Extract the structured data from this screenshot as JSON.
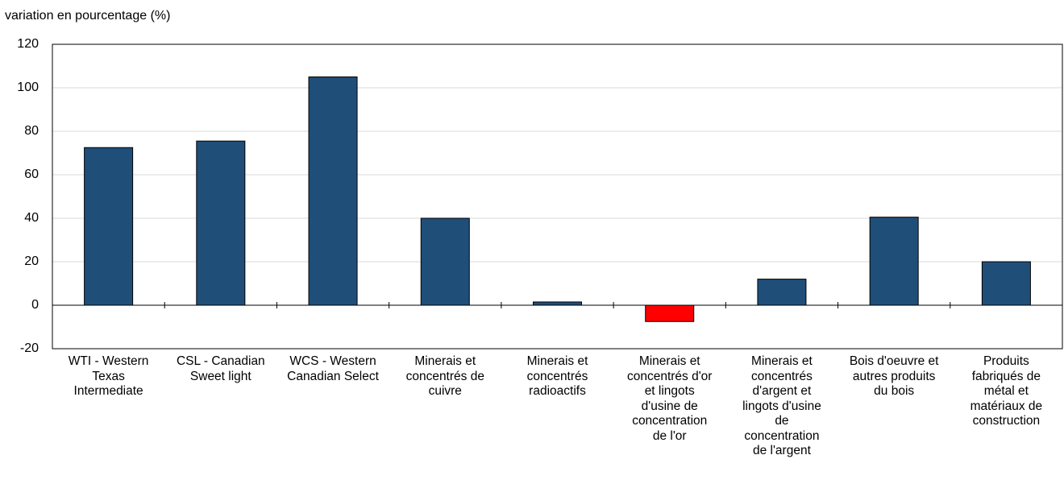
{
  "chart_data": {
    "type": "bar",
    "y_label": "variation en pourcentage (%)",
    "categories": [
      "WTI  - Western\nTexas\nIntermediate",
      "CSL - Canadian\nSweet light",
      "WCS - Western\nCanadian Select",
      "Minerais et\nconcentrés de\ncuivre",
      "Minerais et\nconcentrés\nradioactifs",
      "Minerais et\nconcentrés d'or\net lingots\nd'usine de\nconcentration\nde l'or",
      "Minerais et\nconcentrés\nd'argent et\nlingots d'usine\nde\nconcentration\nde l'argent",
      "Bois d'oeuvre et\nautres produits\ndu bois",
      "Produits\nfabriqués de\nmétal et\nmatériaux de\nconstruction"
    ],
    "values": [
      72.5,
      75.5,
      105,
      40,
      1.5,
      -7.5,
      12,
      40.5,
      20
    ],
    "colors": [
      "#1f4e79",
      "#1f4e79",
      "#1f4e79",
      "#1f4e79",
      "#1f4e79",
      "#ff0000",
      "#1f4e79",
      "#1f4e79",
      "#1f4e79"
    ],
    "ylim": [
      -20,
      120
    ],
    "yticks": [
      -20,
      0,
      20,
      40,
      60,
      80,
      100,
      120
    ],
    "grid": true
  }
}
